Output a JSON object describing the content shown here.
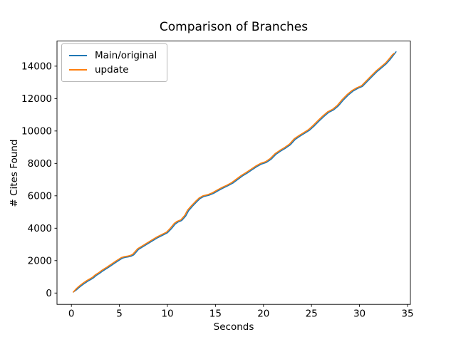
{
  "chart_data": {
    "type": "line",
    "title": "Comparison of Branches",
    "xlabel": "Seconds",
    "ylabel": "# Cites Found",
    "grid": false,
    "legend_position": "upper left",
    "x_ticks": [
      0,
      5,
      10,
      15,
      20,
      25,
      30,
      35
    ],
    "y_ticks": [
      0,
      2000,
      4000,
      6000,
      8000,
      10000,
      12000,
      14000
    ],
    "xlim": [
      -1.5,
      35.3
    ],
    "ylim": [
      -700,
      15550
    ],
    "axis_color": "#000000",
    "background_color": "#ffffff",
    "series": [
      {
        "name": "Main/original",
        "color": "#1f77b4",
        "x": [
          0.2,
          0.5,
          0.8,
          1.1,
          1.4,
          1.7,
          2.0,
          2.3,
          2.6,
          2.9,
          3.2,
          3.5,
          3.8,
          4.1,
          4.4,
          4.7,
          5.0,
          5.3,
          5.6,
          5.9,
          6.2,
          6.5,
          7.0,
          7.5,
          8.0,
          8.5,
          9.0,
          9.5,
          10.0,
          10.4,
          10.8,
          11.1,
          11.5,
          11.9,
          12.2,
          12.6,
          13.0,
          13.4,
          13.8,
          14.3,
          14.8,
          15.3,
          15.8,
          16.3,
          16.8,
          17.3,
          17.8,
          18.3,
          18.8,
          19.3,
          19.8,
          20.3,
          20.8,
          21.3,
          21.8,
          22.3,
          22.8,
          23.3,
          23.8,
          24.3,
          24.8,
          25.3,
          25.8,
          26.3,
          26.8,
          27.3,
          27.8,
          28.3,
          28.8,
          29.3,
          29.8,
          30.3,
          30.8,
          31.3,
          31.8,
          32.3,
          32.8,
          33.2,
          33.5,
          33.8
        ],
        "y": [
          60,
          190,
          340,
          480,
          610,
          730,
          830,
          940,
          1090,
          1200,
          1330,
          1450,
          1560,
          1680,
          1800,
          1920,
          2040,
          2150,
          2200,
          2230,
          2270,
          2360,
          2700,
          2880,
          3060,
          3240,
          3420,
          3570,
          3720,
          3960,
          4250,
          4380,
          4480,
          4750,
          5080,
          5350,
          5600,
          5830,
          5960,
          6030,
          6150,
          6320,
          6480,
          6620,
          6780,
          7000,
          7220,
          7400,
          7600,
          7800,
          7960,
          8060,
          8260,
          8560,
          8760,
          8940,
          9150,
          9480,
          9680,
          9860,
          10050,
          10320,
          10620,
          10900,
          11150,
          11300,
          11550,
          11900,
          12200,
          12450,
          12620,
          12750,
          13050,
          13350,
          13650,
          13900,
          14150,
          14420,
          14650,
          14880
        ]
      },
      {
        "name": "update",
        "color": "#ff7f0e",
        "x": [
          0.2,
          0.45,
          0.72,
          1.0,
          1.3,
          1.6,
          1.9,
          2.2,
          2.5,
          2.8,
          3.1,
          3.4,
          3.7,
          4.0,
          4.3,
          4.6,
          4.9,
          5.2,
          5.5,
          5.8,
          6.1,
          6.4,
          6.9,
          7.4,
          7.9,
          8.4,
          8.9,
          9.4,
          9.9,
          10.3,
          10.7,
          11.0,
          11.4,
          11.8,
          12.1,
          12.5,
          12.9,
          13.3,
          13.7,
          14.2,
          14.7,
          15.2,
          15.7,
          16.2,
          16.7,
          17.2,
          17.7,
          18.2,
          18.7,
          19.2,
          19.7,
          20.2,
          20.7,
          21.2,
          21.7,
          22.2,
          22.7,
          23.2,
          23.7,
          24.2,
          24.7,
          25.2,
          25.7,
          26.2,
          26.7,
          27.2,
          27.7,
          28.2,
          28.7,
          29.2,
          29.7,
          30.2,
          30.7,
          31.2,
          31.7,
          32.2,
          32.7,
          33.1,
          33.4,
          33.6
        ],
        "y": [
          60,
          230,
          380,
          520,
          650,
          770,
          870,
          980,
          1130,
          1240,
          1370,
          1490,
          1600,
          1720,
          1840,
          1960,
          2080,
          2190,
          2240,
          2270,
          2310,
          2400,
          2740,
          2920,
          3100,
          3280,
          3460,
          3610,
          3760,
          4000,
          4290,
          4420,
          4520,
          4790,
          5120,
          5390,
          5640,
          5870,
          6000,
          6070,
          6190,
          6360,
          6520,
          6660,
          6820,
          7040,
          7260,
          7440,
          7640,
          7840,
          8000,
          8100,
          8300,
          8600,
          8800,
          8980,
          9190,
          9520,
          9720,
          9900,
          10090,
          10360,
          10660,
          10940,
          11190,
          11340,
          11590,
          11940,
          12240,
          12490,
          12660,
          12790,
          13090,
          13390,
          13690,
          13940,
          14190,
          14460,
          14690,
          14790
        ]
      }
    ]
  }
}
